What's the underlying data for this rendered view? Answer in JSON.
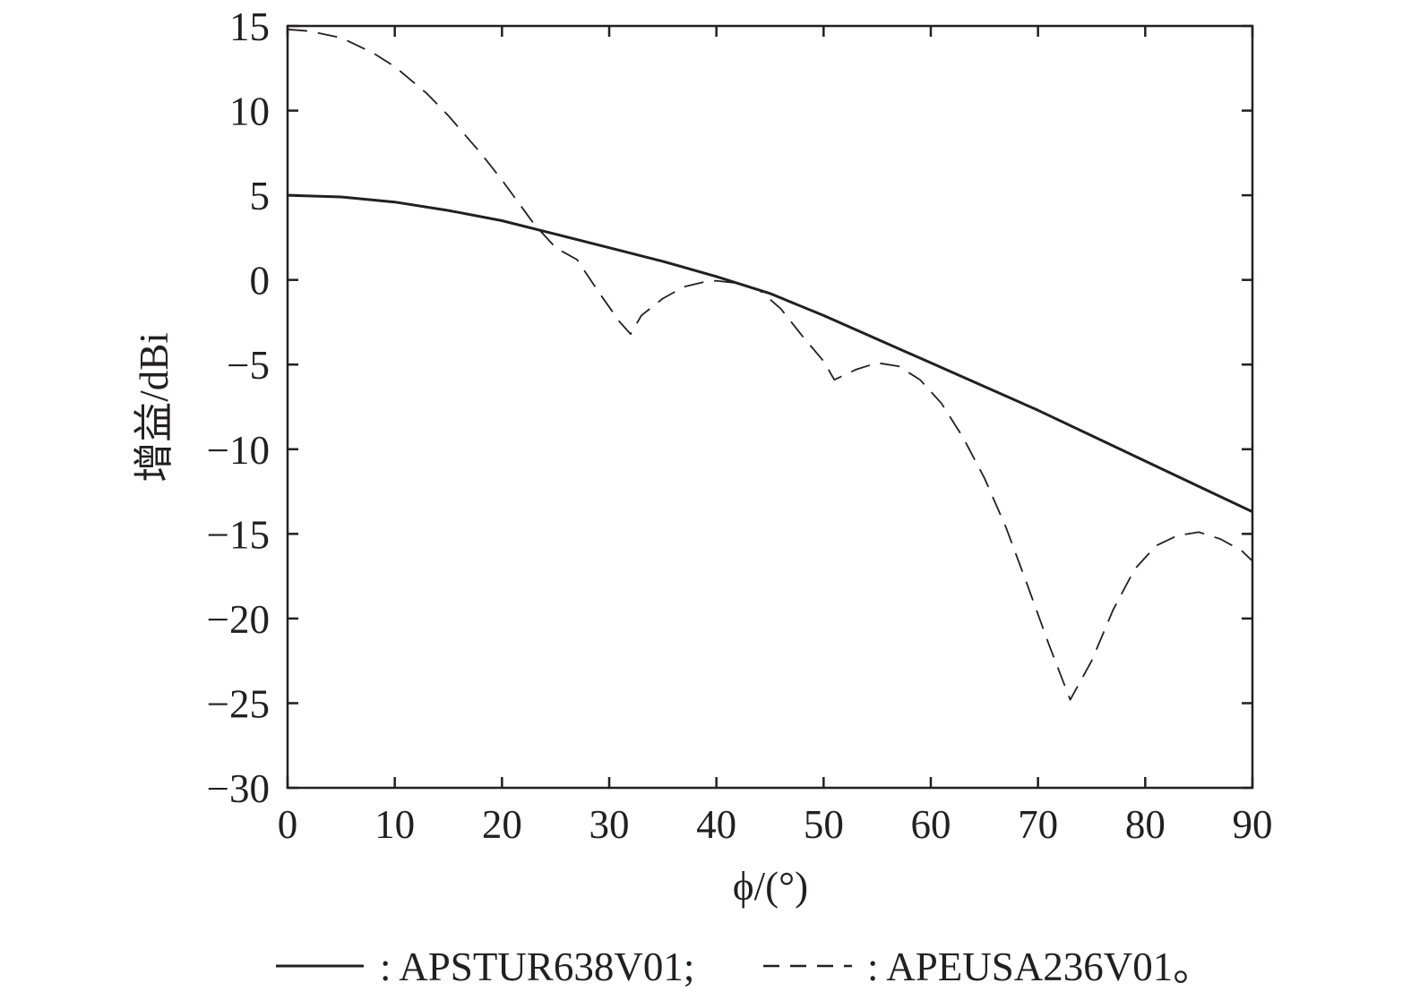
{
  "chart_data": {
    "type": "line",
    "title": "",
    "xlabel": "ϕ/(°)",
    "ylabel": "增益/dBi",
    "xlim": [
      0,
      90
    ],
    "ylim": [
      -30,
      15
    ],
    "xticks": [
      0,
      10,
      20,
      30,
      40,
      50,
      60,
      70,
      80,
      90
    ],
    "yticks": [
      15,
      10,
      5,
      0,
      -5,
      -10,
      -15,
      -20,
      -25,
      -30
    ],
    "xtick_labels": [
      "0",
      "10",
      "20",
      "30",
      "40",
      "50",
      "60",
      "70",
      "80",
      "90"
    ],
    "ytick_labels": [
      "15",
      "10",
      "5",
      "0",
      "−5",
      "−10",
      "−15",
      "−20",
      "−25",
      "−30"
    ],
    "grid": false,
    "legend_position": "bottom",
    "legend": {
      "prefix_solid": ": APSTUR638V01;",
      "prefix_dashed": ": APEUSA236V01。"
    },
    "series": [
      {
        "name": "APSTUR638V01",
        "style": "solid",
        "color": "#231f20",
        "x": [
          0,
          5,
          10,
          15,
          20,
          25,
          30,
          35,
          40,
          45,
          50,
          55,
          60,
          65,
          70,
          75,
          80,
          85,
          90
        ],
        "y": [
          5.0,
          4.9,
          4.6,
          4.1,
          3.5,
          2.7,
          1.9,
          1.1,
          0.2,
          -0.8,
          -2.1,
          -3.5,
          -4.9,
          -6.3,
          -7.7,
          -9.2,
          -10.7,
          -12.2,
          -13.7
        ]
      },
      {
        "name": "APEUSA236V01",
        "style": "dashed",
        "color": "#231f20",
        "x": [
          0,
          2,
          5,
          8,
          10,
          13,
          15,
          18,
          20,
          23,
          25,
          27,
          29,
          31,
          32,
          33,
          35,
          37,
          39,
          40,
          42,
          44,
          46,
          48,
          50,
          51,
          53,
          55,
          57,
          59,
          61,
          63,
          65,
          67,
          69,
          71,
          73,
          75,
          77,
          79,
          81,
          83,
          85,
          87,
          89,
          90
        ],
        "y": [
          14.8,
          14.7,
          14.3,
          13.4,
          12.6,
          11.0,
          9.7,
          7.5,
          5.9,
          3.3,
          1.9,
          1.2,
          -0.7,
          -2.5,
          -3.2,
          -2.1,
          -1.1,
          -0.4,
          -0.1,
          -0.05,
          -0.2,
          -0.6,
          -1.7,
          -3.3,
          -4.8,
          -5.9,
          -5.3,
          -4.9,
          -5.1,
          -5.9,
          -7.3,
          -9.3,
          -11.7,
          -14.6,
          -18.0,
          -21.5,
          -24.8,
          -22.5,
          -19.5,
          -17.1,
          -15.7,
          -15.1,
          -14.9,
          -15.3,
          -16.0,
          -16.6
        ]
      }
    ]
  }
}
